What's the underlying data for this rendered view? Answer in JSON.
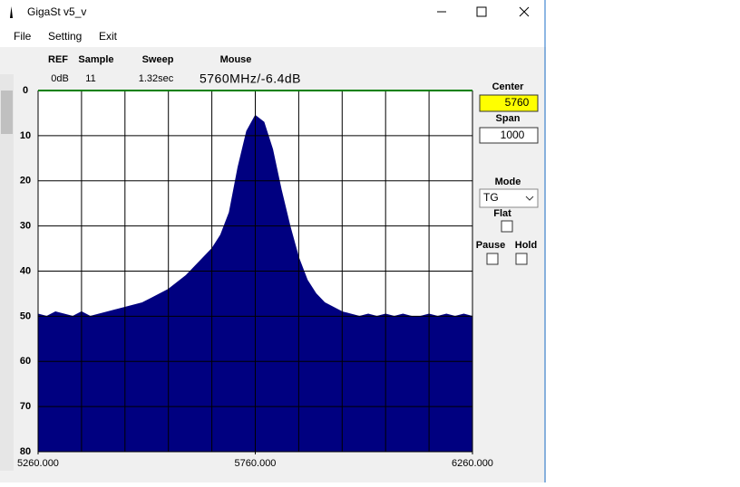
{
  "window": {
    "title": "GigaSt v5_v"
  },
  "menu": [
    "File",
    "Setting",
    "Exit"
  ],
  "status": {
    "headers": [
      "REF",
      "Sample",
      "Sweep",
      "Mouse"
    ],
    "values": [
      "0dB",
      "11",
      "1.32sec",
      "5760MHz/-6.4dB"
    ]
  },
  "controls": {
    "center_label": "Center",
    "center_value": "5760",
    "span_label": "Span",
    "span_value": "1000",
    "mode_label": "Mode",
    "mode_value": "TG",
    "flat_label": "Flat",
    "pause_label": "Pause",
    "hold_label": "Hold"
  },
  "chart_data": {
    "type": "area",
    "color": "#000080",
    "x": [
      5260,
      5280,
      5300,
      5320,
      5340,
      5360,
      5380,
      5400,
      5420,
      5440,
      5460,
      5480,
      5500,
      5520,
      5540,
      5560,
      5580,
      5600,
      5620,
      5640,
      5660,
      5680,
      5700,
      5720,
      5740,
      5760,
      5780,
      5800,
      5820,
      5840,
      5860,
      5880,
      5900,
      5920,
      5940,
      5960,
      5980,
      6000,
      6020,
      6040,
      6060,
      6080,
      6100,
      6120,
      6140,
      6160,
      6180,
      6200,
      6220,
      6240,
      6260
    ],
    "values": [
      49.5,
      50,
      49,
      49.5,
      50,
      49,
      50,
      49.5,
      49,
      48.5,
      48,
      47.5,
      47,
      46,
      45,
      44,
      42.5,
      41,
      39,
      37,
      35,
      32,
      27,
      17,
      9,
      5.5,
      7,
      13,
      22,
      30,
      37,
      42,
      45,
      47,
      48,
      49,
      49.5,
      50,
      49.5,
      50,
      49.5,
      50,
      49.5,
      50,
      50,
      49.5,
      50,
      49.5,
      50,
      49.5,
      50
    ],
    "xlim": [
      5260,
      6260
    ],
    "xticks": [
      {
        "value": 5260,
        "label": "5260.000"
      },
      {
        "value": 5760,
        "label": "5760.000"
      },
      {
        "value": 6260,
        "label": "6260.000"
      }
    ],
    "ylim": [
      0,
      80
    ],
    "yticks": [
      0,
      10,
      20,
      30,
      40,
      50,
      60,
      70,
      80
    ]
  }
}
